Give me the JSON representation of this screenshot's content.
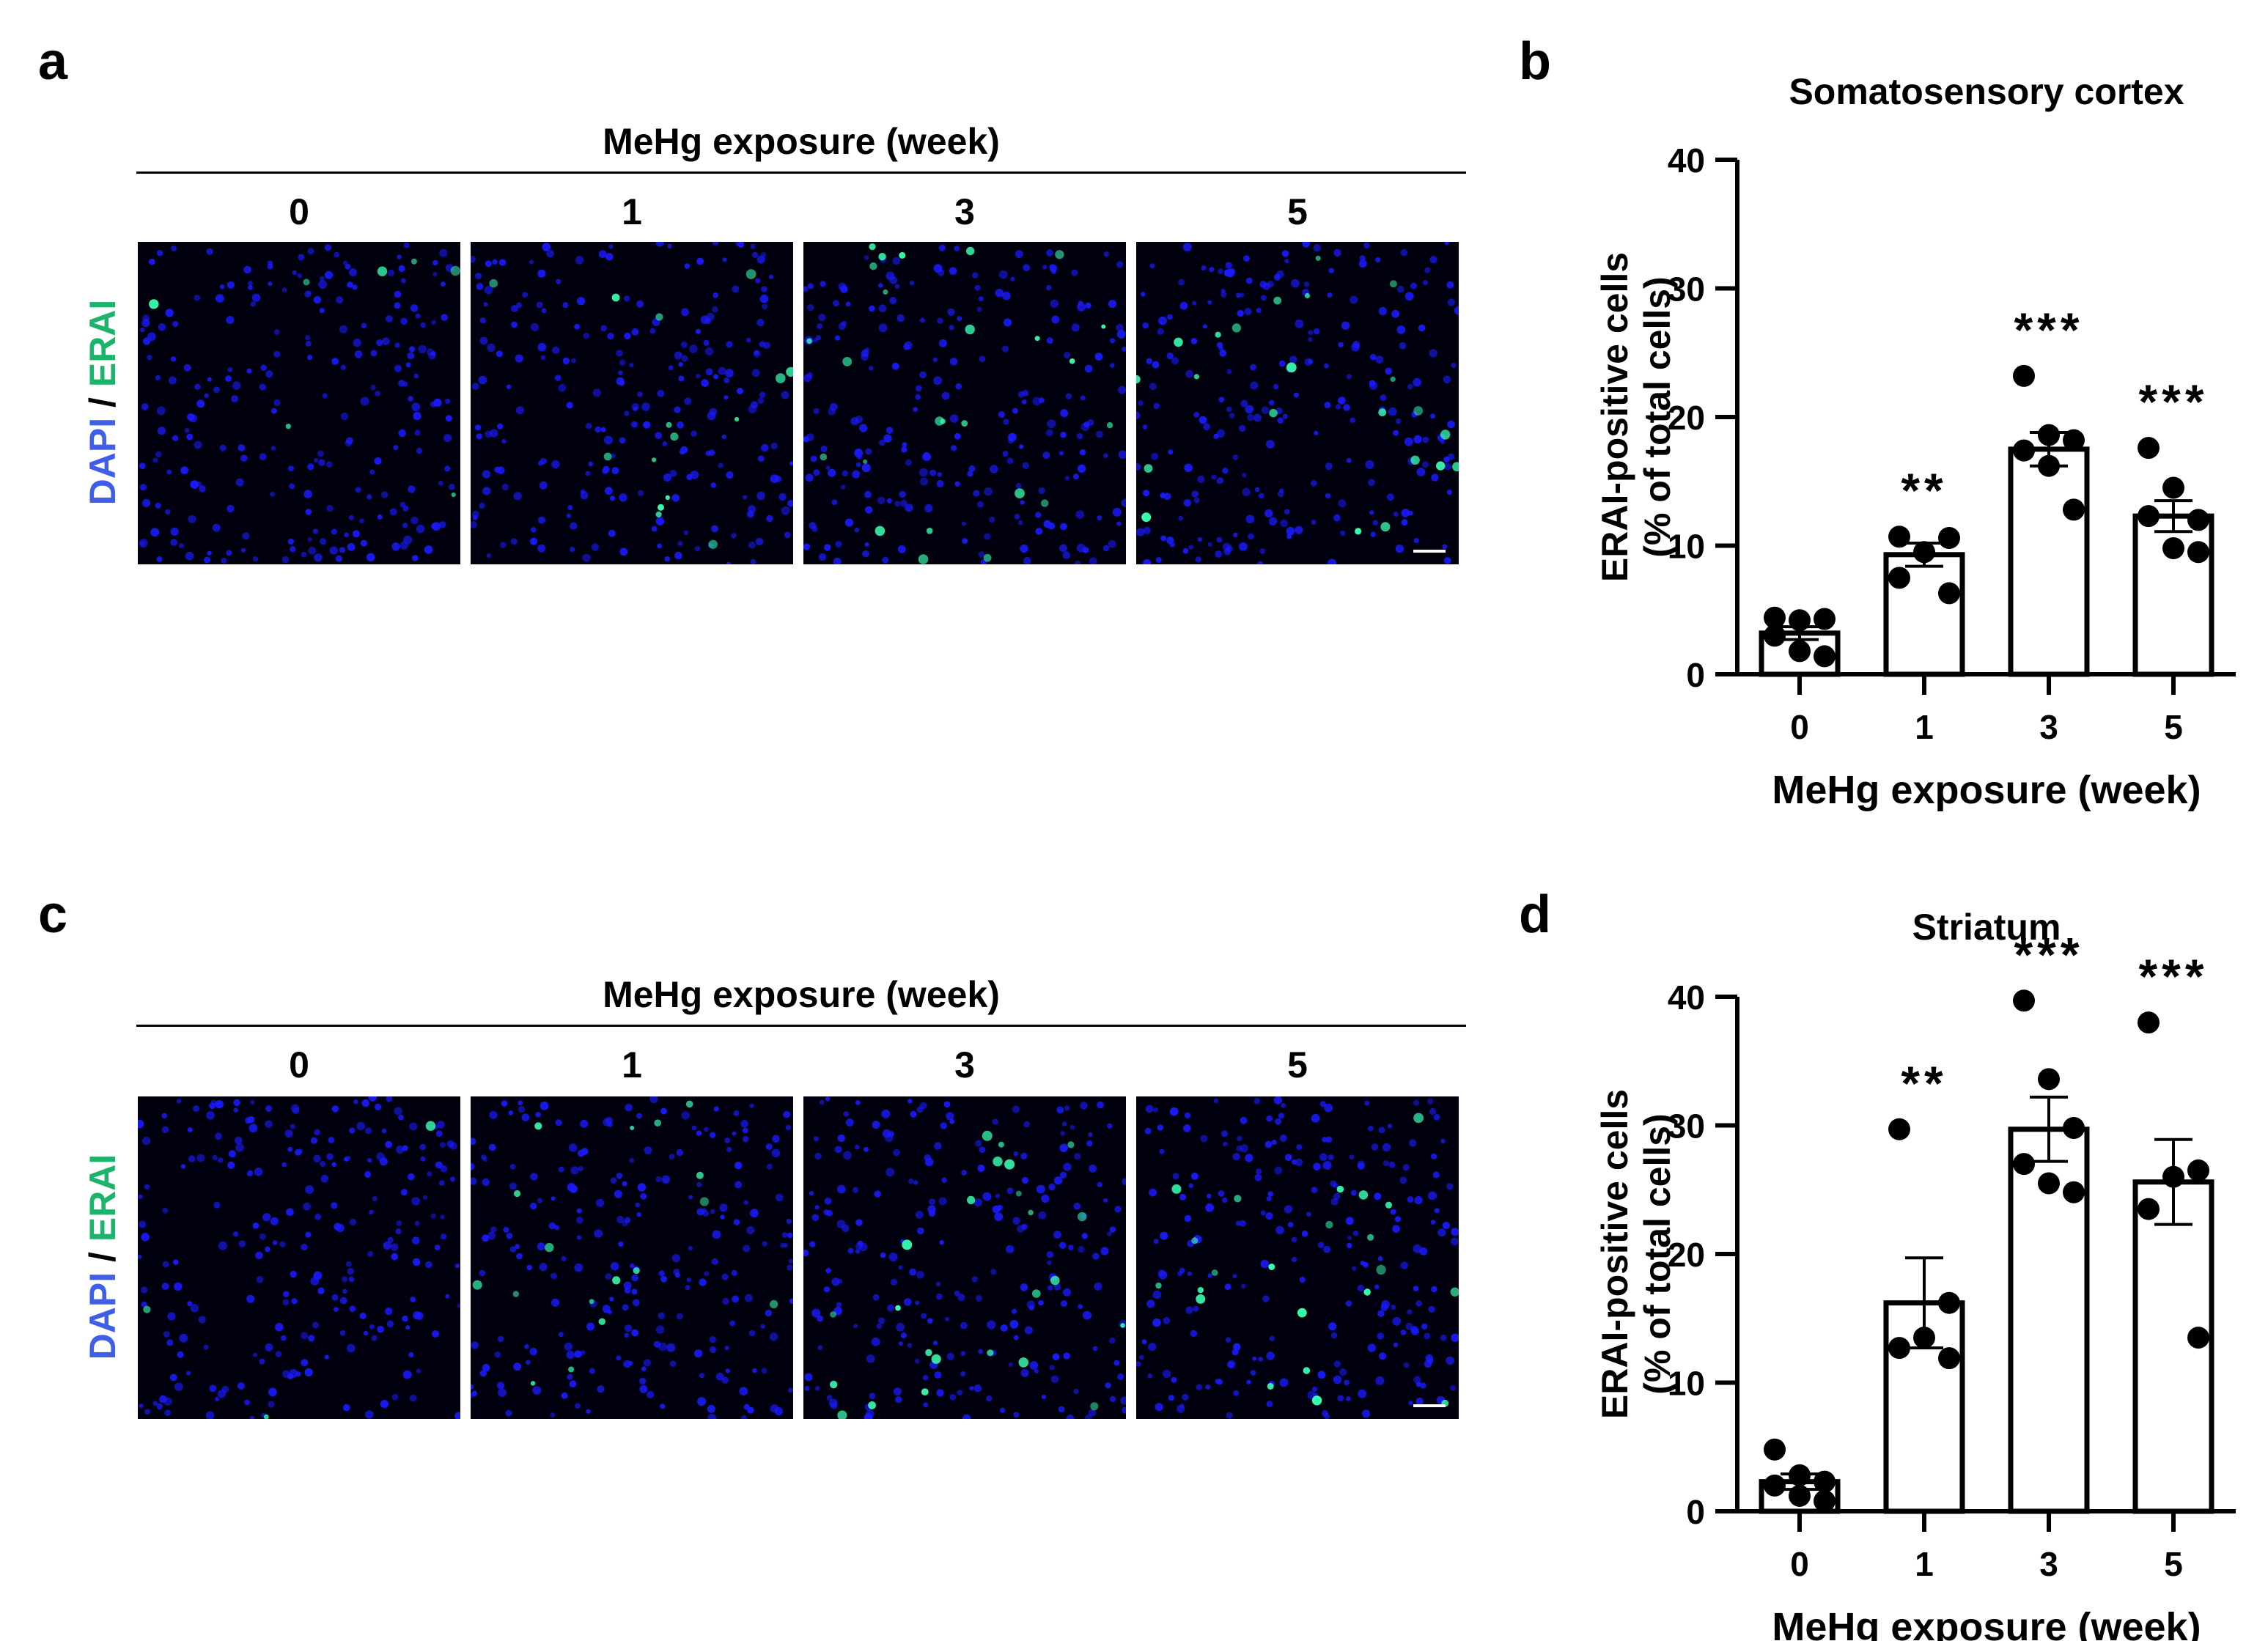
{
  "panels": {
    "a": {
      "letter": "a"
    },
    "b": {
      "letter": "b"
    },
    "c": {
      "letter": "c"
    },
    "d": {
      "letter": "d"
    }
  },
  "image_panels": [
    {
      "header": "MeHg exposure (week)",
      "columns": [
        "0",
        "1",
        "3",
        "5"
      ],
      "channel_dapi": "DAPI",
      "channel_sep": " / ",
      "channel_erai": "ERAI",
      "signal_levels": [
        0.25,
        0.55,
        0.9,
        0.8
      ]
    },
    {
      "header": "MeHg exposure (week)",
      "columns": [
        "0",
        "1",
        "3",
        "5"
      ],
      "channel_dapi": "DAPI",
      "channel_sep": " / ",
      "channel_erai": "ERAI",
      "signal_levels": [
        0.1,
        0.6,
        0.85,
        0.8
      ]
    }
  ],
  "colors": {
    "dapi": "#3f5fe6",
    "erai": "#1db36b",
    "nucleus": "#1a1aff",
    "signal": "#39ffb0",
    "bar_fill": "#ffffff",
    "ink": "#000000"
  },
  "chart_data": [
    {
      "type": "bar",
      "title": "Somatosensory cortex",
      "xlabel": "MeHg exposure (week)",
      "ylabel_line1": "ERAI-positive cells",
      "ylabel_line2": "(% of total cells)",
      "categories": [
        "0",
        "1",
        "3",
        "5"
      ],
      "values": [
        3.2,
        9.3,
        17.5,
        12.3
      ],
      "sem": [
        0.5,
        0.9,
        1.3,
        1.2
      ],
      "points": [
        [
          4.4,
          4.2,
          4.3,
          3.0,
          1.8,
          1.4
        ],
        [
          10.7,
          10.6,
          9.5,
          7.5,
          6.3
        ],
        [
          23.2,
          18.6,
          18.2,
          17.4,
          16.2,
          12.8
        ],
        [
          17.6,
          14.5,
          12.0,
          12.3,
          9.8,
          9.5
        ]
      ],
      "significance": [
        "",
        "**",
        "***",
        "***"
      ],
      "yticks": [
        0,
        10,
        20,
        30,
        40
      ],
      "ylim": [
        0,
        40
      ]
    },
    {
      "type": "bar",
      "title": "Striatum",
      "xlabel": "MeHg exposure (week)",
      "ylabel_line1": "ERAI-positive cells",
      "ylabel_line2": "(% of total cells)",
      "categories": [
        "0",
        "1",
        "3",
        "5"
      ],
      "values": [
        2.3,
        16.2,
        29.7,
        25.6
      ],
      "sem": [
        0.6,
        3.5,
        2.5,
        3.3
      ],
      "points": [
        [
          4.8,
          2.8,
          2.3,
          2.0,
          1.2,
          0.8
        ],
        [
          29.7,
          16.2,
          13.5,
          12.7,
          11.9
        ],
        [
          39.7,
          33.6,
          29.8,
          27.0,
          25.5,
          24.8
        ],
        [
          38.0,
          26.5,
          26.0,
          23.5,
          13.5
        ]
      ],
      "significance": [
        "",
        "**",
        "***",
        "***"
      ],
      "yticks": [
        0,
        10,
        20,
        30,
        40
      ],
      "ylim": [
        0,
        40
      ]
    }
  ]
}
